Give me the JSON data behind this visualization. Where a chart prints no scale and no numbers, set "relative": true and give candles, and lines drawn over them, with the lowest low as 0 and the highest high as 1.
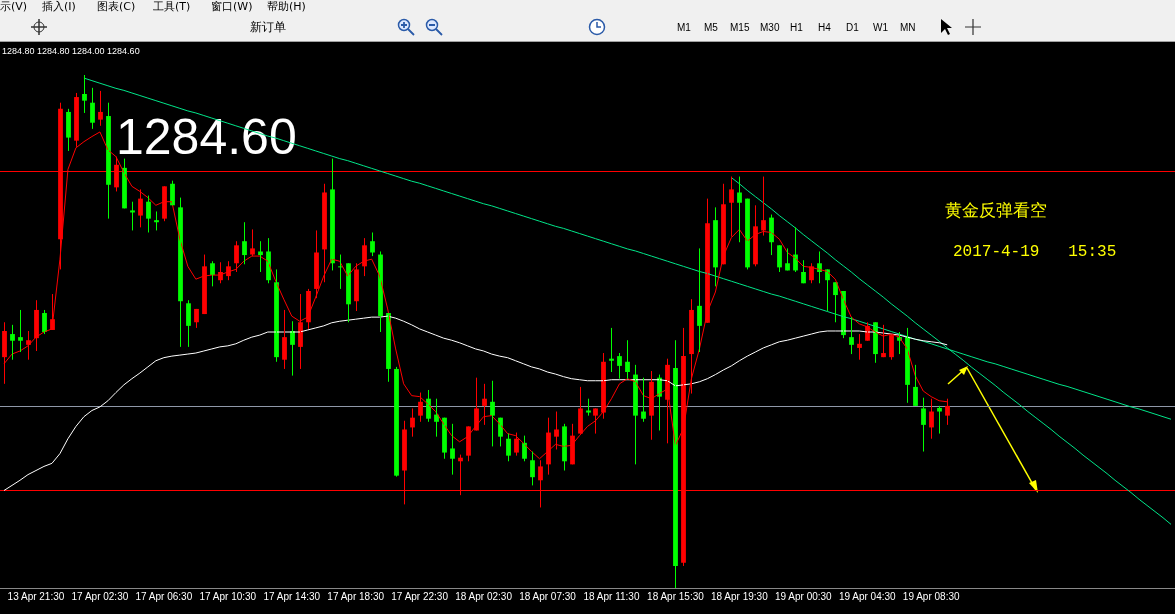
{
  "chart_data": {
    "type": "candlestick",
    "relative": true,
    "title": "黄金反弹看空",
    "subtitle": "2017-4-19   15:35",
    "categories": [
      null,
      null,
      null,
      null,
      "13 Apr 21:30",
      null,
      null,
      null,
      null,
      null,
      null,
      null,
      "17 Apr 02:30",
      null,
      null,
      null,
      null,
      null,
      null,
      null,
      "17 Apr 06:30",
      null,
      null,
      null,
      null,
      null,
      null,
      null,
      "17 Apr 10:30",
      null,
      null,
      null,
      null,
      null,
      null,
      null,
      "17 Apr 14:30",
      null,
      null,
      null,
      null,
      null,
      null,
      null,
      "17 Apr 18:30",
      null,
      null,
      null,
      null,
      null,
      null,
      null,
      "17 Apr 22:30",
      null,
      null,
      null,
      null,
      null,
      null,
      null,
      "18 Apr 02:30",
      null,
      null,
      null,
      null,
      null,
      null,
      null,
      "18 Apr 07:30",
      null,
      null,
      null,
      null,
      null,
      null,
      null,
      "18 Apr 11:30",
      null,
      null,
      null,
      null,
      null,
      null,
      null,
      "18 Apr 15:30",
      null,
      null,
      null,
      null,
      null,
      null,
      null,
      "18 Apr 19:30",
      null,
      null,
      null,
      null,
      null,
      null,
      null,
      "19 Apr 00:30",
      null,
      null,
      null,
      null,
      null,
      null,
      null,
      "19 Apr 04:30",
      null,
      null,
      null,
      null,
      null,
      null,
      null,
      "19 Apr 08:30",
      null,
      null,
      null,
      null,
      null,
      null,
      null,
      null,
      null,
      null,
      null,
      null,
      null,
      null,
      null,
      null,
      null,
      null,
      null,
      null,
      null,
      null,
      null,
      null,
      null,
      null,
      null,
      null,
      null,
      null
    ],
    "ohlc": [
      [
        0.45,
        0.518,
        0.398,
        0.501
      ],
      [
        0.495,
        0.513,
        0.445,
        0.482
      ],
      [
        0.489,
        0.542,
        0.46,
        0.482
      ],
      [
        0.474,
        0.501,
        0.445,
        0.483
      ],
      [
        0.487,
        0.561,
        0.462,
        0.542
      ],
      [
        0.536,
        0.542,
        0.495,
        0.499
      ],
      [
        0.503,
        0.573,
        0.503,
        0.524
      ],
      [
        0.68,
        0.946,
        0.621,
        0.934
      ],
      [
        0.928,
        0.934,
        0.852,
        0.878
      ],
      [
        0.872,
        0.965,
        0.86,
        0.957
      ],
      [
        0.963,
        1,
        0.926,
        0.95
      ],
      [
        0.946,
        0.975,
        0.895,
        0.907
      ],
      [
        0.913,
        0.969,
        0.901,
        0.928
      ],
      [
        0.92,
        0.946,
        0.72,
        0.786
      ],
      [
        0.781,
        0.841,
        0.773,
        0.825
      ],
      [
        0.819,
        0.837,
        0.74,
        0.74
      ],
      [
        0.736,
        0.753,
        0.697,
        0.732
      ],
      [
        0.726,
        0.777,
        0.703,
        0.759
      ],
      [
        0.753,
        0.765,
        0.693,
        0.72
      ],
      [
        0.717,
        0.734,
        0.697,
        0.713
      ],
      [
        0.72,
        0.783,
        0.715,
        0.783
      ],
      [
        0.788,
        0.794,
        0.746,
        0.746
      ],
      [
        0.742,
        0.761,
        0.47,
        0.559
      ],
      [
        0.555,
        0.561,
        0.47,
        0.511
      ],
      [
        0.518,
        0.544,
        0.507,
        0.544
      ],
      [
        0.534,
        0.65,
        0.534,
        0.627
      ],
      [
        0.633,
        0.637,
        0.588,
        0.61
      ],
      [
        0.6,
        0.635,
        0.594,
        0.616
      ],
      [
        0.608,
        0.637,
        0.6,
        0.627
      ],
      [
        0.633,
        0.676,
        0.616,
        0.668
      ],
      [
        0.676,
        0.713,
        0.631,
        0.649
      ],
      [
        0.65,
        0.699,
        0.647,
        0.662
      ],
      [
        0.656,
        0.676,
        0.616,
        0.649
      ],
      [
        0.656,
        0.682,
        0.594,
        0.6
      ],
      [
        0.596,
        0.621,
        0.441,
        0.45
      ],
      [
        0.445,
        0.542,
        0.427,
        0.489
      ],
      [
        0.501,
        0.52,
        0.414,
        0.474
      ],
      [
        0.47,
        0.573,
        0.427,
        0.518
      ],
      [
        0.518,
        0.583,
        0.505,
        0.579
      ],
      [
        0.583,
        0.697,
        0.565,
        0.654
      ],
      [
        0.66,
        0.788,
        0.596,
        0.771
      ],
      [
        0.777,
        0.837,
        0.619,
        0.633
      ],
      [
        0.627,
        0.65,
        0.583,
        0.625
      ],
      [
        0.633,
        0.633,
        0.518,
        0.553
      ],
      [
        0.559,
        0.633,
        0.54,
        0.621
      ],
      [
        0.627,
        0.682,
        0.608,
        0.668
      ],
      [
        0.676,
        0.693,
        0.647,
        0.654
      ],
      [
        0.65,
        0.656,
        0.499,
        0.53
      ],
      [
        0.536,
        0.536,
        0.402,
        0.427
      ],
      [
        0.427,
        0.431,
        0.217,
        0.219
      ],
      [
        0.229,
        0.326,
        0.163,
        0.309
      ],
      [
        0.313,
        0.35,
        0.295,
        0.332
      ],
      [
        0.336,
        0.381,
        0.324,
        0.363
      ],
      [
        0.369,
        0.386,
        0.324,
        0.33
      ],
      [
        0.338,
        0.369,
        0.295,
        0.324
      ],
      [
        0.332,
        0.332,
        0.252,
        0.264
      ],
      [
        0.272,
        0.32,
        0.221,
        0.252
      ],
      [
        0.247,
        0.26,
        0.181,
        0.254
      ],
      [
        0.258,
        0.315,
        0.247,
        0.315
      ],
      [
        0.307,
        0.41,
        0.307,
        0.35
      ],
      [
        0.355,
        0.398,
        0.318,
        0.369
      ],
      [
        0.363,
        0.404,
        0.276,
        0.336
      ],
      [
        0.332,
        0.332,
        0.276,
        0.295
      ],
      [
        0.291,
        0.301,
        0.247,
        0.258
      ],
      [
        0.264,
        0.303,
        0.258,
        0.291
      ],
      [
        0.283,
        0.297,
        0.247,
        0.252
      ],
      [
        0.249,
        0.266,
        0.2,
        0.216
      ],
      [
        0.21,
        0.249,
        0.157,
        0.237
      ],
      [
        0.241,
        0.332,
        0.221,
        0.303
      ],
      [
        0.295,
        0.344,
        0.27,
        0.309
      ],
      [
        0.315,
        0.32,
        0.229,
        0.247
      ],
      [
        0.241,
        0.32,
        0.241,
        0.297
      ],
      [
        0.301,
        0.392,
        0.301,
        0.35
      ],
      [
        0.346,
        0.369,
        0.336,
        0.342
      ],
      [
        0.336,
        0.35,
        0.301,
        0.35
      ],
      [
        0.342,
        0.458,
        0.33,
        0.441
      ],
      [
        0.447,
        0.507,
        0.421,
        0.443
      ],
      [
        0.452,
        0.458,
        0.408,
        0.433
      ],
      [
        0.441,
        0.483,
        0.408,
        0.421
      ],
      [
        0.416,
        0.435,
        0.241,
        0.336
      ],
      [
        0.344,
        0.41,
        0.324,
        0.33
      ],
      [
        0.336,
        0.423,
        0.289,
        0.402
      ],
      [
        0.41,
        0.416,
        0.307,
        0.373
      ],
      [
        0.367,
        0.447,
        0.282,
        0.435
      ],
      [
        0.429,
        0.483,
        0,
        0.043
      ],
      [
        0.049,
        0.507,
        0.043,
        0.452
      ],
      [
        0.456,
        0.563,
        0.379,
        0.542
      ],
      [
        0.55,
        0.662,
        0.46,
        0.511
      ],
      [
        0.517,
        0.759,
        0.517,
        0.711
      ],
      [
        0.717,
        0.742,
        0.588,
        0.625
      ],
      [
        0.631,
        0.788,
        0.631,
        0.748
      ],
      [
        0.751,
        0.802,
        0.685,
        0.777
      ],
      [
        0.771,
        0.802,
        0.674,
        0.751
      ],
      [
        0.759,
        0.759,
        0.621,
        0.625
      ],
      [
        0.631,
        0.746,
        0.627,
        0.705
      ],
      [
        0.697,
        0.802,
        0.687,
        0.717
      ],
      [
        0.722,
        0.728,
        0.649,
        0.674
      ],
      [
        0.668,
        0.668,
        0.616,
        0.625
      ],
      [
        0.633,
        0.662,
        0.619,
        0.619
      ],
      [
        0.65,
        0.703,
        0.616,
        0.619
      ],
      [
        0.616,
        0.639,
        0.594,
        0.594
      ],
      [
        0.6,
        0.633,
        0.594,
        0.627
      ],
      [
        0.633,
        0.656,
        0.594,
        0.616
      ],
      [
        0.621,
        0.621,
        0.54,
        0.6
      ],
      [
        0.596,
        0.596,
        0.518,
        0.571
      ],
      [
        0.579,
        0.579,
        0.487,
        0.493
      ],
      [
        0.489,
        0.528,
        0.456,
        0.474
      ],
      [
        0.468,
        0.495,
        0.445,
        0.476
      ],
      [
        0.482,
        0.518,
        0.482,
        0.511
      ],
      [
        0.518,
        0.518,
        0.439,
        0.456
      ],
      [
        0.45,
        0.513,
        0.45,
        0.458
      ],
      [
        0.45,
        0.493,
        0.445,
        0.493
      ],
      [
        0.489,
        0.499,
        0.456,
        0.482
      ],
      [
        0.489,
        0.507,
        0.361,
        0.396
      ],
      [
        0.392,
        0.435,
        0.355,
        0.355
      ],
      [
        0.35,
        0.371,
        0.266,
        0.318
      ],
      [
        0.313,
        0.369,
        0.291,
        0.344
      ],
      [
        0.351,
        0.355,
        0.301,
        0.344
      ],
      [
        0.336,
        0.369,
        0.318,
        0.355
      ],
      null,
      null,
      null,
      null,
      null,
      null,
      null,
      null,
      null,
      null,
      null,
      null,
      null,
      null,
      null,
      null,
      null,
      null,
      null,
      null,
      null,
      null,
      null,
      null,
      null,
      null,
      null,
      null
    ],
    "colors": [
      "#ff0000",
      "#00ff00",
      "#00ff00",
      "#ff0000",
      "#ff0000",
      "#00ff00",
      "#ff0000",
      "#ff0000",
      "#00ff00",
      "#ff0000",
      "#00ff00",
      "#00ff00",
      "#ff0000",
      "#00ff00",
      "#ff0000",
      "#00ff00",
      "#00ff00",
      "#ff0000",
      "#00ff00",
      "#00ff00",
      "#ff0000",
      "#00ff00",
      "#00ff00",
      "#00ff00",
      "#ff0000",
      "#ff0000",
      "#00ff00",
      "#ff0000",
      "#ff0000",
      "#ff0000",
      "#00ff00",
      "#ff0000",
      "#00ff00",
      "#00ff00",
      "#00ff00",
      "#ff0000",
      "#00ff00",
      "#ff0000",
      "#ff0000",
      "#ff0000",
      "#ff0000",
      "#00ff00",
      "#00ff00",
      "#00ff00",
      "#ff0000",
      "#ff0000",
      "#00ff00",
      "#00ff00",
      "#00ff00",
      "#00ff00",
      "#ff0000",
      "#ff0000",
      "#ff0000",
      "#00ff00",
      "#00ff00",
      "#00ff00",
      "#00ff00",
      "#ff0000",
      "#ff0000",
      "#ff0000",
      "#ff0000",
      "#00ff00",
      "#00ff00",
      "#00ff00",
      "#ff0000",
      "#00ff00",
      "#00ff00",
      "#ff0000",
      "#ff0000",
      "#ff0000",
      "#00ff00",
      "#ff0000",
      "#ff0000",
      "#00ff00",
      "#ff0000",
      "#ff0000",
      "#00ff00",
      "#00ff00",
      "#00ff00",
      "#00ff00",
      "#00ff00",
      "#ff0000",
      "#00ff00",
      "#ff0000",
      "#00ff00",
      "#ff0000",
      "#ff0000",
      "#00ff00",
      "#ff0000",
      "#00ff00",
      "#ff0000",
      "#ff0000",
      "#00ff00",
      "#00ff00",
      "#ff0000",
      "#ff0000",
      "#00ff00",
      "#00ff00",
      "#00ff00",
      "#00ff00",
      "#00ff00",
      "#ff0000",
      "#00ff00",
      "#00ff00",
      "#00ff00",
      "#00ff00",
      "#00ff00",
      "#ff0000",
      "#ff0000",
      "#00ff00",
      "#ff0000",
      "#ff0000",
      "#00ff00",
      "#00ff00",
      "#00ff00",
      "#00ff00",
      "#ff0000",
      "#00ff00",
      "#ff0000",
      null,
      null,
      null,
      null,
      null,
      null,
      null,
      null,
      null,
      null,
      null,
      null,
      null,
      null,
      null,
      null,
      null,
      null,
      null,
      null,
      null,
      null,
      null,
      null,
      null,
      null,
      null,
      null
    ],
    "series": [
      {
        "type": "line",
        "color": "#ff0000",
        "values": [
          0.437,
          0.456,
          0.462,
          0.472,
          0.489,
          0.499,
          0.505,
          0.641,
          0.816,
          0.858,
          0.87,
          0.88,
          0.889,
          0.854,
          0.841,
          0.81,
          0.783,
          0.773,
          0.761,
          0.746,
          0.753,
          0.753,
          0.68,
          0.627,
          0.602,
          0.608,
          0.61,
          0.61,
          0.616,
          0.621,
          0.637,
          0.647,
          0.647,
          0.637,
          0.598,
          0.563,
          0.53,
          0.52,
          0.528,
          0.567,
          0.608,
          0.641,
          0.637,
          0.608,
          0.627,
          0.637,
          0.641,
          0.608,
          0.544,
          0.466,
          0.398,
          0.375,
          0.373,
          0.359,
          0.344,
          0.32,
          0.297,
          0.285,
          0.295,
          0.315,
          0.334,
          0.336,
          0.32,
          0.301,
          0.297,
          0.282,
          0.266,
          0.252,
          0.266,
          0.28,
          0.276,
          0.278,
          0.297,
          0.315,
          0.326,
          0.344,
          0.369,
          0.398,
          0.408,
          0.402,
          0.375,
          0.369,
          0.379,
          0.388,
          0.278,
          0.311,
          0.408,
          0.466,
          0.538,
          0.577,
          0.647,
          0.683,
          0.699,
          0.676,
          0.689,
          0.695,
          0.693,
          0.68,
          0.654,
          0.643,
          0.627,
          0.625,
          0.621,
          0.617,
          0.602,
          0.563,
          0.528,
          0.515,
          0.509,
          0.499,
          0.491,
          0.495,
          0.489,
          0.466,
          0.414,
          0.384,
          0.373,
          0.365,
          0.363,
          null,
          null,
          null,
          null,
          null,
          null,
          null,
          null,
          null,
          null,
          null,
          null,
          null,
          null,
          null,
          null,
          null,
          null,
          null,
          null,
          null,
          null,
          null,
          null,
          null,
          null,
          null,
          null
        ]
      },
      {
        "type": "line",
        "color": "#ffffff",
        "values": [
          0.19,
          0.2,
          0.21,
          0.221,
          0.229,
          0.237,
          0.243,
          0.262,
          0.291,
          0.315,
          0.334,
          0.346,
          0.353,
          0.365,
          0.381,
          0.396,
          0.408,
          0.419,
          0.431,
          0.443,
          0.449,
          0.452,
          0.454,
          0.456,
          0.458,
          0.462,
          0.466,
          0.47,
          0.472,
          0.476,
          0.483,
          0.489,
          0.493,
          0.499,
          0.499,
          0.499,
          0.499,
          0.499,
          0.503,
          0.507,
          0.511,
          0.517,
          0.52,
          0.522,
          0.524,
          0.526,
          0.528,
          0.528,
          0.53,
          0.526,
          0.52,
          0.513,
          0.505,
          0.499,
          0.493,
          0.487,
          0.483,
          0.478,
          0.472,
          0.466,
          0.462,
          0.456,
          0.452,
          0.449,
          0.443,
          0.437,
          0.431,
          0.427,
          0.421,
          0.417,
          0.412,
          0.408,
          0.406,
          0.404,
          0.404,
          0.404,
          0.406,
          0.406,
          0.406,
          0.406,
          0.406,
          0.406,
          0.406,
          0.404,
          0.394,
          0.396,
          0.398,
          0.402,
          0.408,
          0.416,
          0.425,
          0.433,
          0.443,
          0.452,
          0.46,
          0.468,
          0.474,
          0.48,
          0.483,
          0.487,
          0.491,
          0.495,
          0.499,
          0.501,
          0.501,
          0.501,
          0.501,
          0.501,
          0.499,
          0.499,
          0.497,
          0.495,
          0.493,
          0.489,
          0.485,
          0.482,
          0.48,
          0.478,
          0.474,
          null,
          null,
          null,
          null,
          null,
          null,
          null,
          null,
          null,
          null,
          null,
          null,
          null,
          null,
          null,
          null,
          null,
          null,
          null,
          null,
          null,
          null,
          null,
          null,
          null,
          null,
          null,
          null
        ]
      },
      {
        "type": "line",
        "color": "#00e68a",
        "values": [
          null,
          null,
          null,
          null,
          null,
          null,
          null,
          null,
          null,
          null,
          0.994,
          0.989,
          0.984,
          0.979,
          0.974,
          0.97,
          0.965,
          0.96,
          0.955,
          0.95,
          0.945,
          0.94,
          0.935,
          0.93,
          0.926,
          0.921,
          0.916,
          0.911,
          0.906,
          0.901,
          0.896,
          0.891,
          0.886,
          0.881,
          0.877,
          0.872,
          0.867,
          0.862,
          0.857,
          0.852,
          0.847,
          0.842,
          0.837,
          0.833,
          0.828,
          0.823,
          0.818,
          0.813,
          0.808,
          0.803,
          0.798,
          0.793,
          0.789,
          0.784,
          0.779,
          0.774,
          0.769,
          0.764,
          0.759,
          0.754,
          0.749,
          0.745,
          0.74,
          0.735,
          0.73,
          0.725,
          0.72,
          0.715,
          0.71,
          0.705,
          0.701,
          0.696,
          0.691,
          0.686,
          0.681,
          0.676,
          0.671,
          0.666,
          0.661,
          0.657,
          0.652,
          0.647,
          0.642,
          0.637,
          0.632,
          0.627,
          0.622,
          0.617,
          0.613,
          0.608,
          0.603,
          0.598,
          0.593,
          0.588,
          0.583,
          0.578,
          0.573,
          0.569,
          0.564,
          0.559,
          0.554,
          0.549,
          0.544,
          0.539,
          0.534,
          0.529,
          0.525,
          0.52,
          0.515,
          0.51,
          0.505,
          0.5,
          0.495,
          0.49,
          0.485,
          0.481,
          0.476,
          0.471,
          0.466,
          0.461,
          0.456,
          0.451,
          0.446,
          0.441,
          0.437,
          0.432,
          0.427,
          0.422,
          0.417,
          0.412,
          0.407,
          0.402,
          0.397,
          0.393,
          0.388,
          0.383,
          0.378,
          0.373,
          0.368,
          0.363,
          0.358,
          0.353,
          0.349,
          0.344,
          0.339,
          0.334,
          0.329
        ]
      },
      {
        "type": "line",
        "color": "#00e68a",
        "values": [
          null,
          null,
          null,
          null,
          null,
          null,
          null,
          null,
          null,
          null,
          null,
          null,
          null,
          null,
          null,
          null,
          null,
          null,
          null,
          null,
          null,
          null,
          null,
          null,
          null,
          null,
          null,
          null,
          null,
          null,
          null,
          null,
          null,
          null,
          null,
          null,
          null,
          null,
          null,
          null,
          null,
          null,
          null,
          null,
          null,
          null,
          null,
          null,
          null,
          null,
          null,
          null,
          null,
          null,
          null,
          null,
          null,
          null,
          null,
          null,
          null,
          null,
          null,
          null,
          null,
          null,
          null,
          null,
          null,
          null,
          null,
          null,
          null,
          null,
          null,
          null,
          null,
          null,
          null,
          null,
          null,
          null,
          null,
          null,
          null,
          null,
          null,
          null,
          null,
          null,
          null,
          0.8,
          0.788,
          0.775,
          0.763,
          0.751,
          0.739,
          0.726,
          0.714,
          0.702,
          0.689,
          0.677,
          0.665,
          0.653,
          0.64,
          0.628,
          0.616,
          0.603,
          0.591,
          0.579,
          0.567,
          0.554,
          0.542,
          0.53,
          0.517,
          0.505,
          0.493,
          0.481,
          0.468,
          0.456,
          0.444,
          0.431,
          0.419,
          0.407,
          0.395,
          0.382,
          0.37,
          0.358,
          0.345,
          0.333,
          0.321,
          0.309,
          0.296,
          0.284,
          0.272,
          0.259,
          0.247,
          0.235,
          0.223,
          0.21,
          0.198,
          0.186,
          0.173,
          0.161,
          0.149,
          0.137,
          0.124
        ]
      }
    ],
    "ref_lines": [
      {
        "axis": "y",
        "value": 0.812,
        "color": "#ff0000"
      },
      {
        "axis": "y",
        "value": 0.192,
        "color": "#ff0000"
      },
      {
        "axis": "y",
        "value": 0.355,
        "color": "#8f98a8"
      }
    ],
    "annotations": [
      "1284.80 1284.80 1284.00 1284.60",
      "1284.60",
      "示(V)",
      "插入(I)",
      "图表(C)",
      "工具(T)",
      "窗口(W)",
      "帮助(H)",
      "新订单",
      "M1",
      "M5",
      "M15",
      "M30",
      "H1",
      "H4",
      "D1",
      "W1",
      "MN"
    ]
  }
}
